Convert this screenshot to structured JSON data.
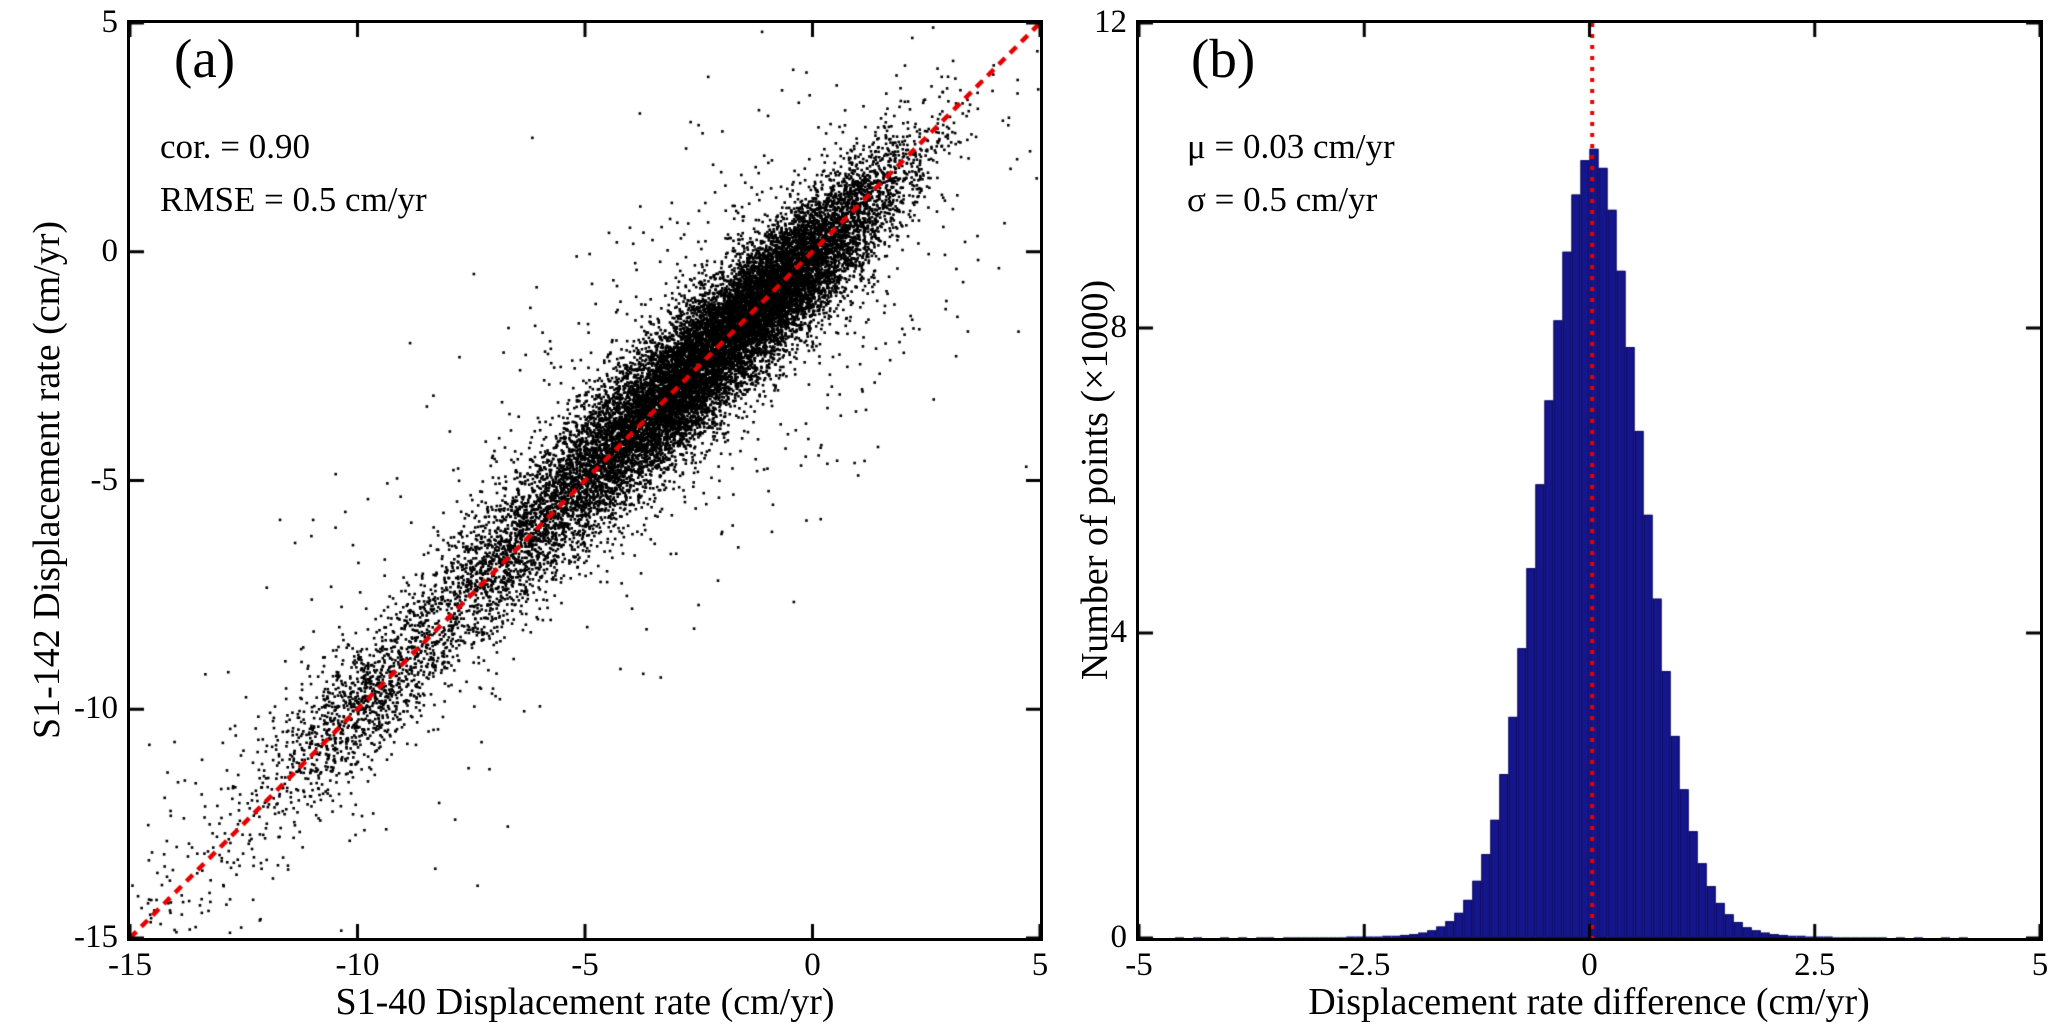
{
  "figure": {
    "background": "#ffffff",
    "panel_count": 2
  },
  "chart_data": [
    {
      "id": "panel-a",
      "type": "scatter",
      "panel_label": "(a)",
      "xlabel": "S1-40 Displacement rate (cm/yr)",
      "ylabel": "S1-142 Displacement rate (cm/yr)",
      "xlim": [
        -15,
        5
      ],
      "ylim": [
        -15,
        5
      ],
      "xticks": [
        -15,
        -10,
        -5,
        0,
        5
      ],
      "yticks": [
        -15,
        -10,
        -5,
        0,
        5
      ],
      "grid": false,
      "annotations": {
        "line1": "cor. = 0.90",
        "line2": "RMSE = 0.5 cm/yr"
      },
      "stats": {
        "correlation": 0.9,
        "rmse_cm_yr": 0.5
      },
      "point_color": "#000000",
      "identity_line": {
        "from": [
          -15,
          -15
        ],
        "to": [
          5,
          5
        ],
        "color": "#e80000",
        "style": "dashed"
      },
      "point_cloud": {
        "seed": 42,
        "clusters": [
          {
            "center_on_line": -1.3,
            "along_sd": 1.5,
            "cross_sd": 0.5,
            "n": 11000
          },
          {
            "center_on_line": -3.6,
            "along_sd": 1.0,
            "cross_sd": 0.6,
            "n": 3000
          },
          {
            "center_on_line": -6.0,
            "along_sd": 1.5,
            "cross_sd": 0.55,
            "n": 2600
          },
          {
            "center_on_line": -9.9,
            "along_sd": 0.8,
            "cross_sd": 0.5,
            "n": 900
          },
          {
            "center_on_line": -12.4,
            "along_sd": 1.3,
            "cross_sd": 0.7,
            "n": 250
          },
          {
            "center_on_line": -2.0,
            "along_sd": 2.2,
            "cross_sd": 1.6,
            "n": 700
          },
          {
            "center_on_line": -7.5,
            "along_sd": 3.5,
            "cross_sd": 1.8,
            "n": 250
          }
        ],
        "outliers": {
          "n": 60,
          "along_range": [
            -14,
            3.5
          ],
          "cross_sd": 2.5
        }
      }
    },
    {
      "id": "panel-b",
      "type": "bar",
      "panel_label": "(b)",
      "xlabel": "Displacement rate difference (cm/yr)",
      "ylabel": "Number of points (×1000)",
      "xlim": [
        -5,
        5
      ],
      "ylim": [
        0,
        12
      ],
      "xticks": [
        -5,
        -2.5,
        0,
        2.5,
        5
      ],
      "yticks": [
        0,
        4,
        8,
        12
      ],
      "grid": false,
      "annotations": {
        "line1": "μ = 0.03 cm/yr",
        "line2": "σ = 0.5 cm/yr"
      },
      "stats": {
        "mean_cm_yr": 0.03,
        "sigma_cm_yr": 0.5
      },
      "bar_color": "#15158c",
      "bar_edge_color": "#0b0b5e",
      "mean_line": {
        "x": 0.03,
        "color": "#e80000",
        "style": "dotted"
      },
      "bins": {
        "start": -5,
        "width": 0.1,
        "counts_x1000": [
          0,
          0,
          0,
          0,
          0.01,
          0,
          0.01,
          0,
          0,
          0.01,
          0,
          0.01,
          0,
          0.01,
          0.01,
          0,
          0.01,
          0.01,
          0.01,
          0.01,
          0.01,
          0.01,
          0.01,
          0.02,
          0.02,
          0.02,
          0.02,
          0.03,
          0.03,
          0.04,
          0.05,
          0.07,
          0.1,
          0.15,
          0.22,
          0.33,
          0.5,
          0.75,
          1.1,
          1.55,
          2.15,
          2.9,
          3.8,
          4.85,
          5.95,
          7.05,
          8.1,
          9.0,
          9.75,
          10.2,
          10.35,
          10.1,
          9.55,
          8.75,
          7.75,
          6.65,
          5.55,
          4.45,
          3.5,
          2.65,
          1.95,
          1.4,
          0.98,
          0.68,
          0.46,
          0.31,
          0.21,
          0.14,
          0.1,
          0.07,
          0.05,
          0.04,
          0.03,
          0.03,
          0.02,
          0.02,
          0.02,
          0.01,
          0.01,
          0.01,
          0.01,
          0.01,
          0.01,
          0,
          0.01,
          0,
          0.01,
          0,
          0,
          0.01,
          0,
          0.01,
          0,
          0,
          0,
          0,
          0,
          0,
          0,
          0
        ]
      }
    }
  ]
}
